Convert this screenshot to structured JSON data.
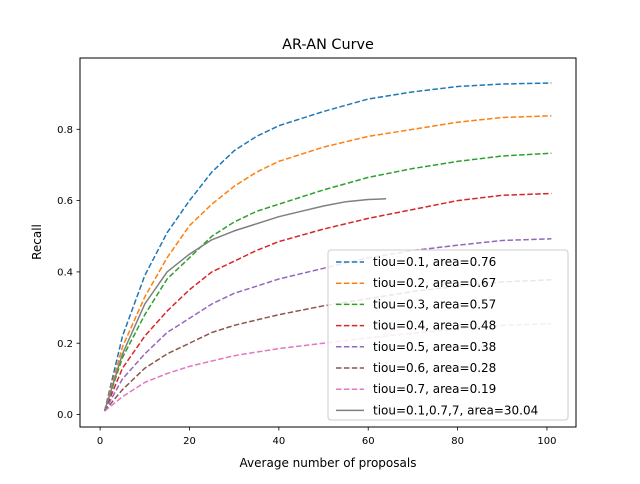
{
  "chart_data": {
    "type": "line",
    "title": "AR-AN Curve",
    "xlabel": "Average number of proposals",
    "ylabel": "Recall",
    "xlim": [
      -4.5,
      106.5
    ],
    "ylim": [
      -0.035,
      1.0
    ],
    "xticks": [
      0,
      20,
      40,
      60,
      80,
      100
    ],
    "yticks": [
      0.0,
      0.2,
      0.4,
      0.6,
      0.8
    ],
    "xtick_labels": [
      "0",
      "20",
      "40",
      "60",
      "80",
      "100"
    ],
    "ytick_labels": [
      "0.0",
      "0.2",
      "0.4",
      "0.6",
      "0.8"
    ],
    "grid": false,
    "legend_position": "lower-right",
    "series": [
      {
        "name": "tiou=0.1, area=0.76",
        "color": "#1f77b4",
        "dash": "dashed",
        "x": [
          1,
          5,
          10,
          15,
          20,
          25,
          30,
          35,
          40,
          50,
          60,
          70,
          80,
          90,
          101
        ],
        "y": [
          0.01,
          0.22,
          0.39,
          0.51,
          0.6,
          0.68,
          0.74,
          0.78,
          0.81,
          0.85,
          0.885,
          0.905,
          0.92,
          0.927,
          0.93
        ]
      },
      {
        "name": "tiou=0.2, area=0.67",
        "color": "#ff7f0e",
        "dash": "dashed",
        "x": [
          1,
          5,
          10,
          15,
          20,
          25,
          30,
          35,
          40,
          50,
          60,
          70,
          80,
          90,
          101
        ],
        "y": [
          0.01,
          0.19,
          0.33,
          0.44,
          0.53,
          0.59,
          0.64,
          0.68,
          0.71,
          0.75,
          0.78,
          0.8,
          0.82,
          0.833,
          0.838
        ]
      },
      {
        "name": "tiou=0.3, area=0.57",
        "color": "#2ca02c",
        "dash": "dashed",
        "x": [
          1,
          5,
          10,
          15,
          20,
          25,
          30,
          35,
          40,
          50,
          60,
          70,
          80,
          90,
          101
        ],
        "y": [
          0.01,
          0.16,
          0.28,
          0.38,
          0.44,
          0.5,
          0.54,
          0.57,
          0.59,
          0.63,
          0.665,
          0.69,
          0.71,
          0.725,
          0.733
        ]
      },
      {
        "name": "tiou=0.4, area=0.48",
        "color": "#d62728",
        "dash": "dashed",
        "x": [
          1,
          5,
          10,
          15,
          20,
          25,
          30,
          35,
          40,
          50,
          60,
          70,
          80,
          90,
          101
        ],
        "y": [
          0.01,
          0.13,
          0.22,
          0.29,
          0.35,
          0.4,
          0.43,
          0.46,
          0.485,
          0.52,
          0.55,
          0.575,
          0.6,
          0.615,
          0.62
        ]
      },
      {
        "name": "tiou=0.5, area=0.38",
        "color": "#9467bd",
        "dash": "dashed",
        "x": [
          1,
          5,
          10,
          15,
          20,
          25,
          30,
          35,
          40,
          50,
          60,
          70,
          80,
          90,
          101
        ],
        "y": [
          0.01,
          0.1,
          0.17,
          0.23,
          0.27,
          0.31,
          0.34,
          0.36,
          0.38,
          0.41,
          0.44,
          0.46,
          0.475,
          0.488,
          0.493
        ]
      },
      {
        "name": "tiou=0.6, area=0.28",
        "color": "#8c564b",
        "dash": "dashed",
        "x": [
          1,
          5,
          10,
          15,
          20,
          25,
          30,
          35,
          40,
          50,
          60,
          70,
          80,
          90,
          101
        ],
        "y": [
          0.01,
          0.07,
          0.13,
          0.17,
          0.2,
          0.23,
          0.25,
          0.265,
          0.28,
          0.305,
          0.325,
          0.345,
          0.36,
          0.372,
          0.378
        ]
      },
      {
        "name": "tiou=0.7, area=0.19",
        "color": "#e377c2",
        "dash": "dashed",
        "x": [
          1,
          5,
          10,
          15,
          20,
          25,
          30,
          35,
          40,
          50,
          60,
          70,
          80,
          90,
          101
        ],
        "y": [
          0.01,
          0.05,
          0.09,
          0.115,
          0.135,
          0.15,
          0.165,
          0.175,
          0.185,
          0.2,
          0.215,
          0.228,
          0.24,
          0.25,
          0.255
        ]
      },
      {
        "name": "tiou=0.1,0.7,7, area=30.04",
        "color": "#7f7f7f",
        "dash": "solid",
        "x": [
          1,
          5,
          10,
          15,
          20,
          25,
          30,
          35,
          40,
          45,
          50,
          55,
          60,
          64
        ],
        "y": [
          0.01,
          0.17,
          0.31,
          0.4,
          0.45,
          0.49,
          0.515,
          0.535,
          0.555,
          0.57,
          0.585,
          0.597,
          0.603,
          0.605
        ]
      }
    ]
  }
}
